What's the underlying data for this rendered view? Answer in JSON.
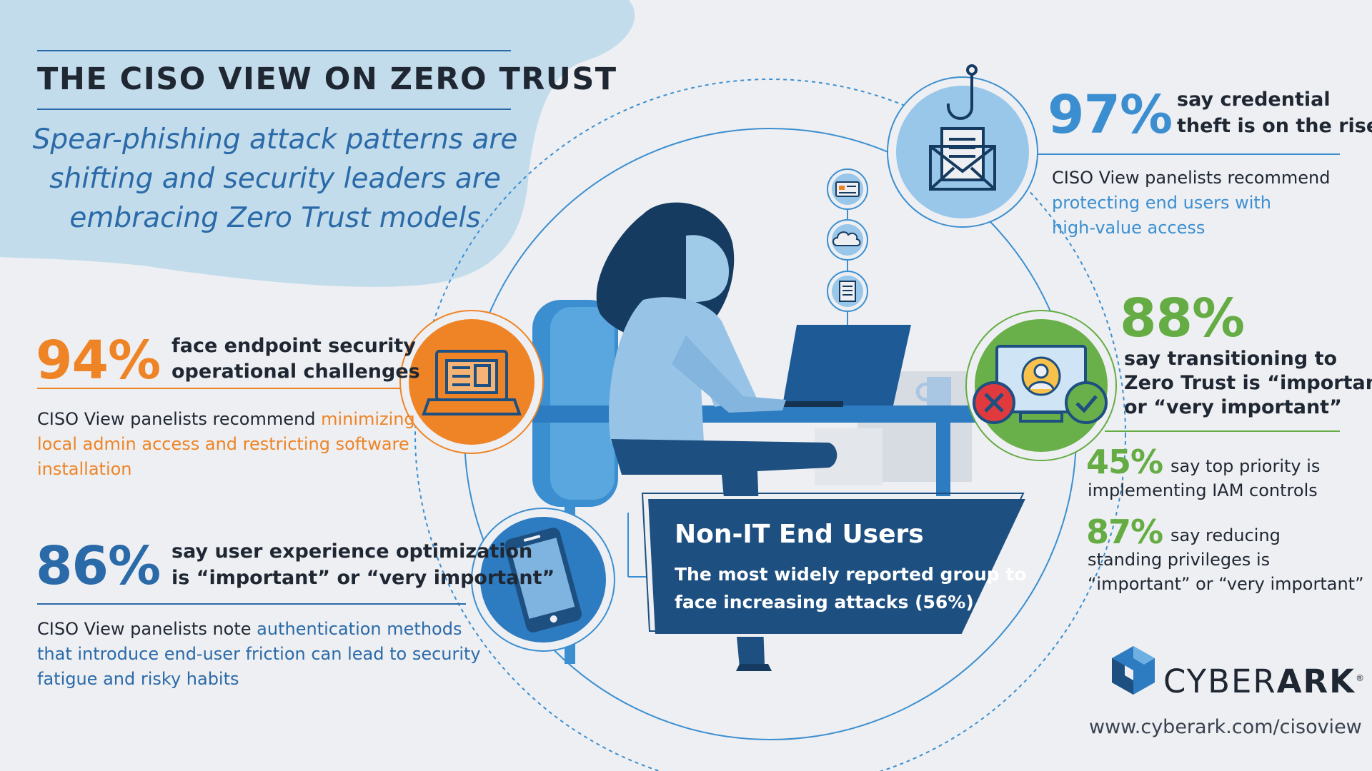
{
  "title": "THE CISO VIEW ON ZERO TRUST",
  "subtitle": {
    "line1": "Spear-phishing attack patterns are",
    "line2": "shifting and security leaders are",
    "line3": "embracing Zero Trust models"
  },
  "stats": {
    "endpoint": {
      "percent": "94%",
      "line1": "face endpoint security",
      "line2": "operational challenges",
      "note_prefix": "CISO View panelists recommend ",
      "note_highlight_1": "minimizing",
      "note_line2": "local admin access and restricting software",
      "note_line3": "installation"
    },
    "ux": {
      "percent": "86%",
      "line1": "say user experience optimization",
      "line2": "is “important” or “very important”",
      "note_prefix": "CISO View panelists note ",
      "note_highlight_1": "authentication methods",
      "note_line2": "that introduce end-user friction can lead to security",
      "note_line3": "fatigue and risky habits"
    },
    "credential": {
      "percent": "97%",
      "line1": "say credential",
      "line2": "theft is on the rise",
      "note_line1": "CISO View panelists recommend",
      "note_line2": "protecting end users with",
      "note_line3": "high-value access"
    },
    "zero_trust": {
      "percent": "88%",
      "line1": "say transitioning to",
      "line2": "Zero Trust is “important”",
      "line3": "or “very important”"
    },
    "iam": {
      "percent": "45%",
      "line1": "say top priority is",
      "line2": "implementing IAM controls"
    },
    "privileges": {
      "percent": "87%",
      "line1": "say reducing",
      "line2": "standing privileges is",
      "line3": "“important” or “very important”"
    }
  },
  "callout": {
    "title": "Non-IT End Users",
    "line1": "The most widely reported group to",
    "line2": "face increasing attacks (56%)"
  },
  "brand": {
    "name_part1": "CYBER",
    "name_part2": "ARK",
    "registered": "®",
    "url": "www.cyberark.com/cisoview"
  },
  "icons": [
    "envelope-phishing-hook-icon",
    "id-card-icon",
    "cloud-icon",
    "document-icon",
    "laptop-icon",
    "smartphone-icon",
    "monitor-user-icon",
    "x-circle-icon",
    "check-circle-icon",
    "cyberark-logo-icon"
  ],
  "colors": {
    "orange": "#ee8426",
    "blue": "#2a6aa8",
    "light_blue": "#3b8fd1",
    "green": "#65ac45",
    "dark_navy": "#1d4f80",
    "background": "#eeeff2"
  }
}
